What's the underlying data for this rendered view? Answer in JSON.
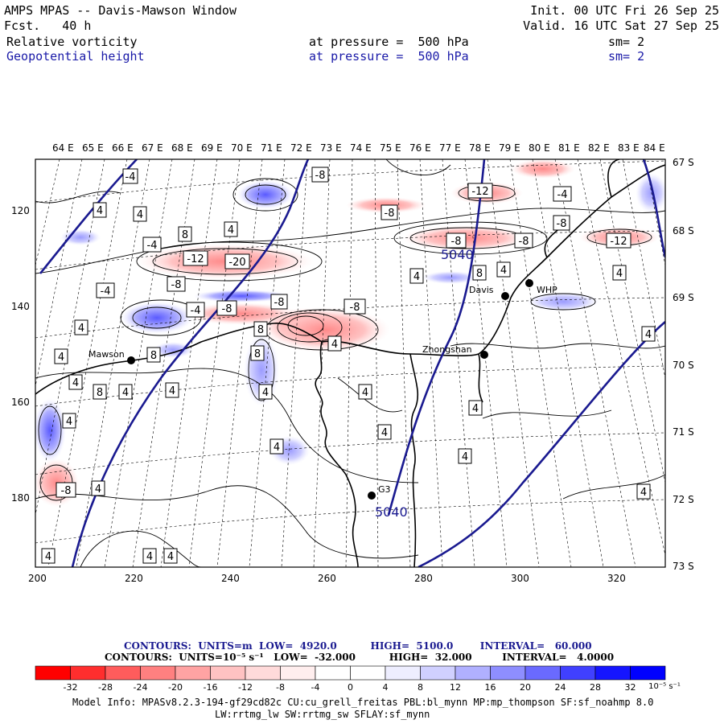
{
  "header": {
    "title": "AMPS MPAS -- Davis-Mawson Window",
    "forecast": "Fcst.   40 h",
    "init": "Init. 00 UTC Fri 26 Sep 25",
    "valid": "Valid. 16 UTC Sat 27 Sep 25",
    "field1": {
      "name": "Relative vorticity",
      "pressure": "at pressure =  500 hPa",
      "smooth": "sm= 2"
    },
    "field2": {
      "name": "Geopotential height",
      "pressure": "at pressure =  500 hPa",
      "smooth": "sm= 2"
    }
  },
  "axes": {
    "lon_labels": [
      "64 E",
      "65 E",
      "66 E",
      "67 E",
      "68 E",
      "69 E",
      "70 E",
      "71 E",
      "72 E",
      "73 E",
      "74 E",
      "75 E",
      "76 E",
      "77 E",
      "78 E",
      "79 E",
      "80 E",
      "81 E",
      "82 E",
      "83 E",
      "84 E"
    ],
    "lat_labels": [
      "67 S",
      "68 S",
      "69 S",
      "70 S",
      "71 S",
      "72 S",
      "73 S"
    ],
    "x_ticks": [
      "200",
      "220",
      "240",
      "260",
      "280",
      "300",
      "320"
    ],
    "y_ticks": [
      "120",
      "140",
      "160",
      "180"
    ]
  },
  "stations": [
    {
      "name": "Mawson"
    },
    {
      "name": "Davis"
    },
    {
      "name": "Zhongshan"
    },
    {
      "name": "WHP"
    },
    {
      "name": "G3"
    }
  ],
  "height_labels": [
    "5040",
    "5040"
  ],
  "vorticity_labels": [
    "-4",
    "4",
    "4",
    "-8",
    "-8",
    "4",
    "8",
    "-4",
    "-12",
    "-20",
    "-8",
    "-4",
    "-8",
    "-8",
    "-8",
    "4",
    "8",
    "4",
    "8",
    "8",
    "4",
    "4",
    "4",
    "8",
    "4",
    "-4",
    "-8",
    "4",
    "4",
    "-12",
    "-4",
    "-8",
    "-12",
    "-8",
    "-4",
    "4",
    "4",
    "8",
    "4",
    "4",
    "4",
    "4",
    "4",
    "4",
    "4",
    "4",
    "4",
    "-8",
    "4",
    "4",
    "4"
  ],
  "footer": {
    "line1": "CONTOURS:  UNITS=m  LOW=  4920.0          HIGH=  5100.0        INTERVAL=   60.000",
    "line2": "CONTOURS:  UNITS=10⁻⁵ s⁻¹   LOW=  -32.000          HIGH=  32.000         INTERVAL=   4.0000",
    "colorbar_labels": [
      "-32",
      "-28",
      "-24",
      "-20",
      "-16",
      "-12",
      "-8",
      "-4",
      "0",
      "4",
      "8",
      "12",
      "16",
      "20",
      "24",
      "28",
      "32"
    ],
    "colorbar_unit": "10⁻⁵ s⁻¹",
    "colorbar_colors": [
      "#ff0000",
      "#ff2e2e",
      "#ff5c5c",
      "#ff8080",
      "#ffa3a3",
      "#ffc2c2",
      "#ffdada",
      "#ffeeee",
      "#ffffff",
      "#ffffff",
      "#eeeeff",
      "#d0d0ff",
      "#b0b0ff",
      "#8e8eff",
      "#6a6aff",
      "#4040ff",
      "#1515ff",
      "#0000ff"
    ],
    "model_info": "Model Info: MPASv8.2.3-194-gf29cd82c CU:cu_grell_freitas PBL:bl_mynn MP:mp_thompson SF:sf_noahmp 8.0",
    "model_info2": "LW:rrtmg_lw SW:rrtmg_sw SFLAY:sf_mynn"
  }
}
